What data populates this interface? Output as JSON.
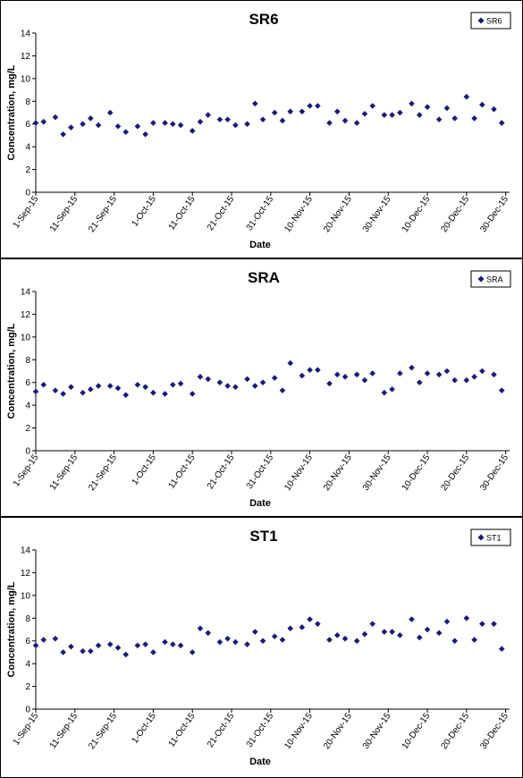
{
  "chart_data": [
    {
      "type": "scatter",
      "title": "SR6",
      "xlabel": "Date",
      "ylabel": "Concentration, mg/L",
      "legend_entry": "SR6",
      "legend_position": "top-right",
      "marker_color": "#1a1a7a",
      "ylim": [
        0,
        14
      ],
      "yticks": [
        "0",
        "2",
        "4",
        "6",
        "8",
        "10",
        "12",
        "14"
      ],
      "xlim": [
        "2015-09-01",
        "2015-12-31"
      ],
      "xticks": [
        "1-Sep-15",
        "11-Sep-15",
        "21-Sep-15",
        "1-Oct-15",
        "11-Oct-15",
        "21-Oct-15",
        "31-Oct-15",
        "10-Nov-15",
        "20-Nov-15",
        "30-Nov-15",
        "10-Dec-15",
        "20-Dec-15",
        "30-Dec-15"
      ],
      "x": [
        "2015-09-01",
        "2015-09-03",
        "2015-09-06",
        "2015-09-08",
        "2015-09-10",
        "2015-09-13",
        "2015-09-15",
        "2015-09-17",
        "2015-09-20",
        "2015-09-22",
        "2015-09-24",
        "2015-09-27",
        "2015-09-29",
        "2015-10-01",
        "2015-10-04",
        "2015-10-06",
        "2015-10-08",
        "2015-10-11",
        "2015-10-13",
        "2015-10-15",
        "2015-10-18",
        "2015-10-20",
        "2015-10-22",
        "2015-10-25",
        "2015-10-27",
        "2015-10-29",
        "2015-11-01",
        "2015-11-03",
        "2015-11-05",
        "2015-11-08",
        "2015-11-10",
        "2015-11-12",
        "2015-11-15",
        "2015-11-17",
        "2015-11-19",
        "2015-11-22",
        "2015-11-24",
        "2015-11-26",
        "2015-11-29",
        "2015-12-01",
        "2015-12-03",
        "2015-12-06",
        "2015-12-08",
        "2015-12-10",
        "2015-12-13",
        "2015-12-15",
        "2015-12-17",
        "2015-12-20",
        "2015-12-22",
        "2015-12-24",
        "2015-12-27",
        "2015-12-29"
      ],
      "y": [
        6.1,
        6.2,
        6.6,
        5.1,
        5.7,
        6.0,
        6.5,
        5.9,
        7.0,
        5.8,
        5.3,
        5.8,
        5.1,
        6.1,
        6.1,
        6.0,
        5.9,
        5.4,
        6.2,
        6.8,
        6.4,
        6.4,
        5.9,
        6.0,
        7.8,
        6.4,
        7.0,
        6.3,
        7.1,
        7.1,
        7.6,
        7.6,
        6.1,
        7.1,
        6.3,
        6.1,
        6.9,
        7.6,
        6.8,
        6.8,
        7.0,
        7.8,
        6.8,
        7.5,
        6.4,
        7.4,
        6.5,
        8.4,
        6.5,
        7.7,
        7.3,
        6.1
      ]
    },
    {
      "type": "scatter",
      "title": "SRA",
      "xlabel": "Date",
      "ylabel": "Concentration, mg/L",
      "legend_entry": "SRA",
      "legend_position": "top-right",
      "marker_color": "#1a1a7a",
      "ylim": [
        0,
        14
      ],
      "yticks": [
        "0",
        "2",
        "4",
        "6",
        "8",
        "10",
        "12",
        "14"
      ],
      "xlim": [
        "2015-09-01",
        "2015-12-31"
      ],
      "xticks": [
        "1-Sep-15",
        "11-Sep-15",
        "21-Sep-15",
        "1-Oct-15",
        "11-Oct-15",
        "21-Oct-15",
        "31-Oct-15",
        "10-Nov-15",
        "20-Nov-15",
        "30-Nov-15",
        "10-Dec-15",
        "20-Dec-15",
        "30-Dec-15"
      ],
      "x": [
        "2015-09-01",
        "2015-09-03",
        "2015-09-06",
        "2015-09-08",
        "2015-09-10",
        "2015-09-13",
        "2015-09-15",
        "2015-09-17",
        "2015-09-20",
        "2015-09-22",
        "2015-09-24",
        "2015-09-27",
        "2015-09-29",
        "2015-10-01",
        "2015-10-04",
        "2015-10-06",
        "2015-10-08",
        "2015-10-11",
        "2015-10-13",
        "2015-10-15",
        "2015-10-18",
        "2015-10-20",
        "2015-10-22",
        "2015-10-25",
        "2015-10-27",
        "2015-10-29",
        "2015-11-01",
        "2015-11-03",
        "2015-11-05",
        "2015-11-08",
        "2015-11-10",
        "2015-11-12",
        "2015-11-15",
        "2015-11-17",
        "2015-11-19",
        "2015-11-22",
        "2015-11-24",
        "2015-11-26",
        "2015-11-29",
        "2015-12-01",
        "2015-12-03",
        "2015-12-06",
        "2015-12-08",
        "2015-12-10",
        "2015-12-13",
        "2015-12-15",
        "2015-12-17",
        "2015-12-20",
        "2015-12-22",
        "2015-12-24",
        "2015-12-27",
        "2015-12-29"
      ],
      "y": [
        5.2,
        5.8,
        5.3,
        5.0,
        5.6,
        5.1,
        5.4,
        5.7,
        5.7,
        5.5,
        4.9,
        5.8,
        5.6,
        5.1,
        5.0,
        5.8,
        5.9,
        5.0,
        6.5,
        6.3,
        6.0,
        5.7,
        5.6,
        6.3,
        5.7,
        6.0,
        6.4,
        5.3,
        7.7,
        6.6,
        7.1,
        7.1,
        5.9,
        6.7,
        6.5,
        6.7,
        6.2,
        6.8,
        5.1,
        5.4,
        6.8,
        7.3,
        6.0,
        6.8,
        6.7,
        7.0,
        6.2,
        6.2,
        6.5,
        7.0,
        6.7,
        5.3
      ]
    },
    {
      "type": "scatter",
      "title": "ST1",
      "xlabel": "Date",
      "ylabel": "Concentration, mg/L",
      "legend_entry": "ST1",
      "legend_position": "top-right",
      "marker_color": "#1a1a7a",
      "ylim": [
        0,
        14
      ],
      "yticks": [
        "0",
        "2",
        "4",
        "6",
        "8",
        "10",
        "12",
        "14"
      ],
      "xlim": [
        "2015-09-01",
        "2015-12-31"
      ],
      "xticks": [
        "1-Sep-15",
        "11-Sep-15",
        "21-Sep-15",
        "1-Oct-15",
        "11-Oct-15",
        "21-Oct-15",
        "31-Oct-15",
        "10-Nov-15",
        "20-Nov-15",
        "30-Nov-15",
        "10-Dec-15",
        "20-Dec-15",
        "30-Dec-15"
      ],
      "x": [
        "2015-09-01",
        "2015-09-03",
        "2015-09-06",
        "2015-09-08",
        "2015-09-10",
        "2015-09-13",
        "2015-09-15",
        "2015-09-17",
        "2015-09-20",
        "2015-09-22",
        "2015-09-24",
        "2015-09-27",
        "2015-09-29",
        "2015-10-01",
        "2015-10-04",
        "2015-10-06",
        "2015-10-08",
        "2015-10-11",
        "2015-10-13",
        "2015-10-15",
        "2015-10-18",
        "2015-10-20",
        "2015-10-22",
        "2015-10-25",
        "2015-10-27",
        "2015-10-29",
        "2015-11-01",
        "2015-11-03",
        "2015-11-05",
        "2015-11-08",
        "2015-11-10",
        "2015-11-12",
        "2015-11-15",
        "2015-11-17",
        "2015-11-19",
        "2015-11-22",
        "2015-11-24",
        "2015-11-26",
        "2015-11-29",
        "2015-12-01",
        "2015-12-03",
        "2015-12-06",
        "2015-12-08",
        "2015-12-10",
        "2015-12-13",
        "2015-12-15",
        "2015-12-17",
        "2015-12-20",
        "2015-12-22",
        "2015-12-24",
        "2015-12-27",
        "2015-12-29"
      ],
      "y": [
        5.6,
        6.1,
        6.2,
        5.0,
        5.5,
        5.1,
        5.1,
        5.6,
        5.7,
        5.4,
        4.8,
        5.6,
        5.7,
        5.0,
        5.9,
        5.7,
        5.6,
        5.0,
        7.1,
        6.7,
        5.9,
        6.2,
        5.9,
        5.7,
        6.8,
        6.0,
        6.4,
        6.1,
        7.1,
        7.2,
        7.9,
        7.5,
        6.1,
        6.5,
        6.2,
        6.0,
        6.6,
        7.5,
        6.8,
        6.8,
        6.5,
        7.9,
        6.3,
        7.0,
        6.7,
        7.7,
        6.0,
        8.0,
        6.1,
        7.5,
        7.5,
        5.3
      ]
    }
  ]
}
